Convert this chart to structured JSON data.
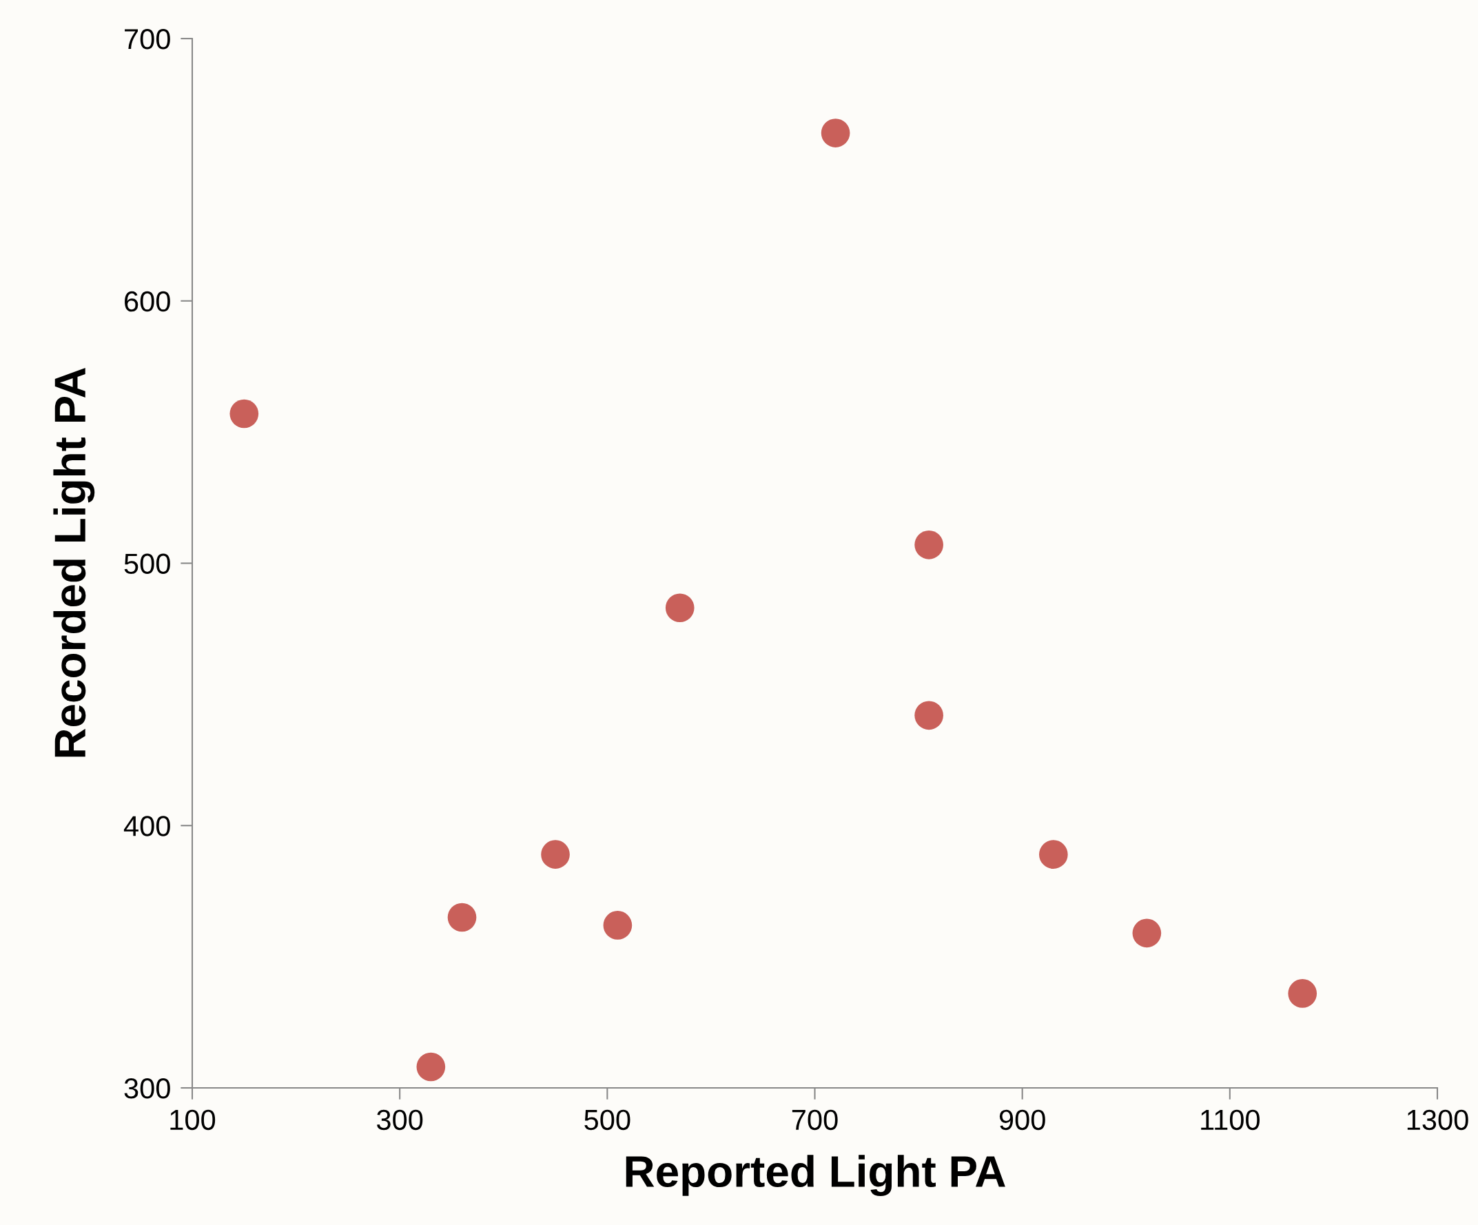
{
  "chart_data": {
    "type": "scatter",
    "xlabel": "Reported Light PA",
    "ylabel": "Recorded Light PA",
    "x": [
      150,
      720,
      810,
      570,
      810,
      450,
      930,
      360,
      510,
      1020,
      1170,
      330
    ],
    "values": [
      557,
      664,
      507,
      483,
      442,
      389,
      389,
      365,
      362,
      359,
      336,
      308
    ],
    "color": "#c9605a",
    "marker": "circle",
    "xlim": [
      100,
      1300
    ],
    "xticks": [
      100,
      300,
      500,
      700,
      900,
      1100,
      1300
    ],
    "ylim": [
      300,
      700
    ],
    "yticks": [
      300,
      400,
      500,
      600,
      700
    ],
    "grid": false,
    "legend": false
  }
}
